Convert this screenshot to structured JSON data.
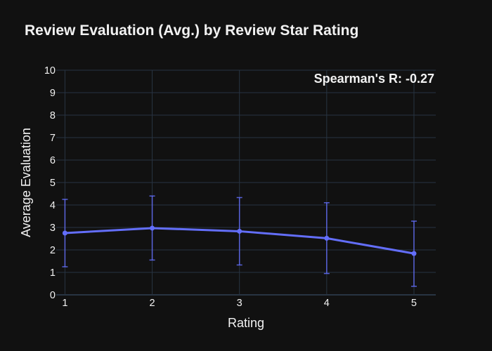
{
  "chart_data": {
    "type": "line",
    "title": "Review Evaluation (Avg.) by Review Star Rating",
    "xlabel": "Rating",
    "ylabel": "Average Evaluation",
    "x": [
      1,
      2,
      3,
      4,
      5
    ],
    "x_tick_labels": [
      "1",
      "2",
      "3",
      "4",
      "5"
    ],
    "y_tick_labels": [
      "0",
      "1",
      "2",
      "3",
      "4",
      "5",
      "6",
      "7",
      "8",
      "9",
      "10"
    ],
    "ylim": [
      0,
      10
    ],
    "xlim": [
      0.9,
      5.25
    ],
    "grid": true,
    "series": [
      {
        "values": [
          2.75,
          2.97,
          2.83,
          2.52,
          1.84
        ],
        "error_upper": [
          4.25,
          4.4,
          4.33,
          4.1,
          3.28
        ],
        "error_lower": [
          1.25,
          1.55,
          1.33,
          0.95,
          0.38
        ],
        "color": "#636efa"
      }
    ],
    "annotation": "Spearman's R: -0.27"
  },
  "colors": {
    "background": "#111111",
    "grid": "#283442",
    "text": "#f2f2f2",
    "series": "#636efa"
  }
}
